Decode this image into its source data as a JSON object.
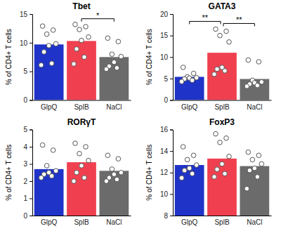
{
  "chart_data": [
    {
      "type": "bar",
      "title": "Tbet",
      "y_label": "% of CD4+ T cells",
      "categories": [
        "GlpQ",
        "SplB",
        "NaCl"
      ],
      "values": [
        9.7,
        10.3,
        7.5
      ],
      "colors": [
        "#1f33c8",
        "#f0404f",
        "#6b6b6b"
      ],
      "points": [
        [
          12.9,
          12.2,
          11.5,
          9.8,
          9.5,
          8.4,
          6.4,
          6.1
        ],
        [
          13.2,
          12.8,
          12.3,
          11.0,
          10.4,
          8.9,
          7.5,
          6.3
        ],
        [
          10.8,
          10.2,
          8.0,
          7.6,
          6.6,
          5.9,
          5.6,
          5.4
        ]
      ],
      "ylim": [
        0,
        15
      ],
      "yticks": [
        0,
        5,
        10,
        15
      ],
      "significance": [
        {
          "between": [
            "SplB",
            "NaCl"
          ],
          "label": "*"
        }
      ]
    },
    {
      "type": "bar",
      "title": "GATA3",
      "y_label": "% of CD4+ T cells",
      "categories": [
        "GlpQ",
        "SplB",
        "NaCl"
      ],
      "values": [
        5.4,
        11.0,
        4.9
      ],
      "colors": [
        "#1f33c8",
        "#f0404f",
        "#6b6b6b"
      ],
      "points": [
        [
          7.6,
          6.2,
          5.4,
          5.2,
          5.1,
          4.9,
          4.6,
          4.3
        ],
        [
          16.5,
          16.0,
          15.0,
          13.5,
          7.6,
          7.2,
          6.8,
          6.0
        ],
        [
          9.3,
          8.9,
          4.6,
          4.2,
          4.0,
          3.7,
          3.4,
          3.2
        ]
      ],
      "ylim": [
        0,
        20
      ],
      "yticks": [
        0,
        5,
        10,
        15,
        20
      ],
      "significance": [
        {
          "between": [
            "GlpQ",
            "SplB"
          ],
          "label": "**"
        },
        {
          "between": [
            "SplB",
            "NaCl"
          ],
          "label": "**"
        }
      ]
    },
    {
      "type": "bar",
      "title": "RORγT",
      "y_label": "% of CD4+ T cells",
      "categories": [
        "GlpQ",
        "SplB",
        "NaCl"
      ],
      "values": [
        2.7,
        3.1,
        2.6
      ],
      "colors": [
        "#1f33c8",
        "#f0404f",
        "#6b6b6b"
      ],
      "points": [
        [
          4.1,
          3.8,
          2.9,
          2.6,
          2.5,
          2.4,
          2.3,
          2.2
        ],
        [
          4.2,
          4.0,
          3.6,
          3.2,
          2.9,
          2.5,
          2.2,
          2.0
        ],
        [
          3.5,
          3.3,
          2.7,
          2.5,
          2.4,
          2.2,
          2.1,
          2.0
        ]
      ],
      "ylim": [
        0,
        5
      ],
      "yticks": [
        0,
        1,
        2,
        3,
        4,
        5
      ],
      "significance": []
    },
    {
      "type": "bar",
      "title": "FoxP3",
      "y_label": "% of CD4+ T cells",
      "categories": [
        "GlpQ",
        "SplB",
        "NaCl"
      ],
      "values": [
        12.7,
        13.3,
        12.6
      ],
      "colors": [
        "#1f33c8",
        "#f0404f",
        "#6b6b6b"
      ],
      "points": [
        [
          14.4,
          13.6,
          13.2,
          12.7,
          12.4,
          12.2,
          11.9,
          11.5
        ],
        [
          15.6,
          15.2,
          14.8,
          13.5,
          12.8,
          12.3,
          11.9,
          11.6
        ],
        [
          13.9,
          13.6,
          13.2,
          12.8,
          12.4,
          12.2,
          11.6,
          10.5
        ]
      ],
      "ylim": [
        8,
        16
      ],
      "yticks": [
        8,
        10,
        12,
        14,
        16
      ],
      "significance": []
    }
  ]
}
